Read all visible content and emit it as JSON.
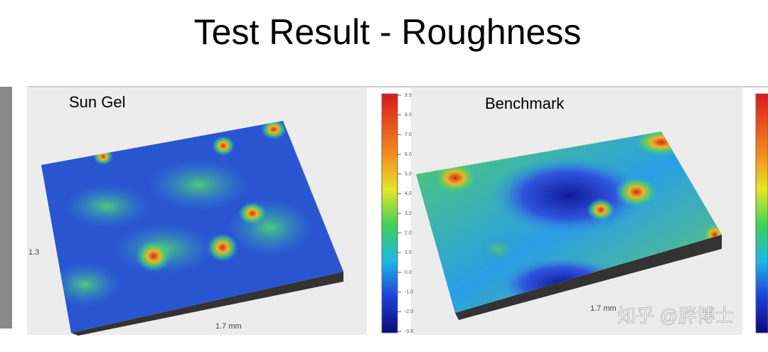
{
  "title": "Test Result - Roughness",
  "panels": [
    {
      "label": "Sun Gel",
      "axis_left": "1.3",
      "axis_bottom": "1.7 mm",
      "colorbar_ticks": [
        "9.5",
        "8.0",
        "7.0",
        "6.0",
        "5.0",
        "4.0",
        "3.0",
        "2.0",
        "1.0",
        "0.0",
        "-1.0",
        "-2.0",
        "-3.8"
      ]
    },
    {
      "label": "Benchmark",
      "axis_bottom": "1.7 mm"
    }
  ],
  "watermark": "知乎 @胖博士"
}
